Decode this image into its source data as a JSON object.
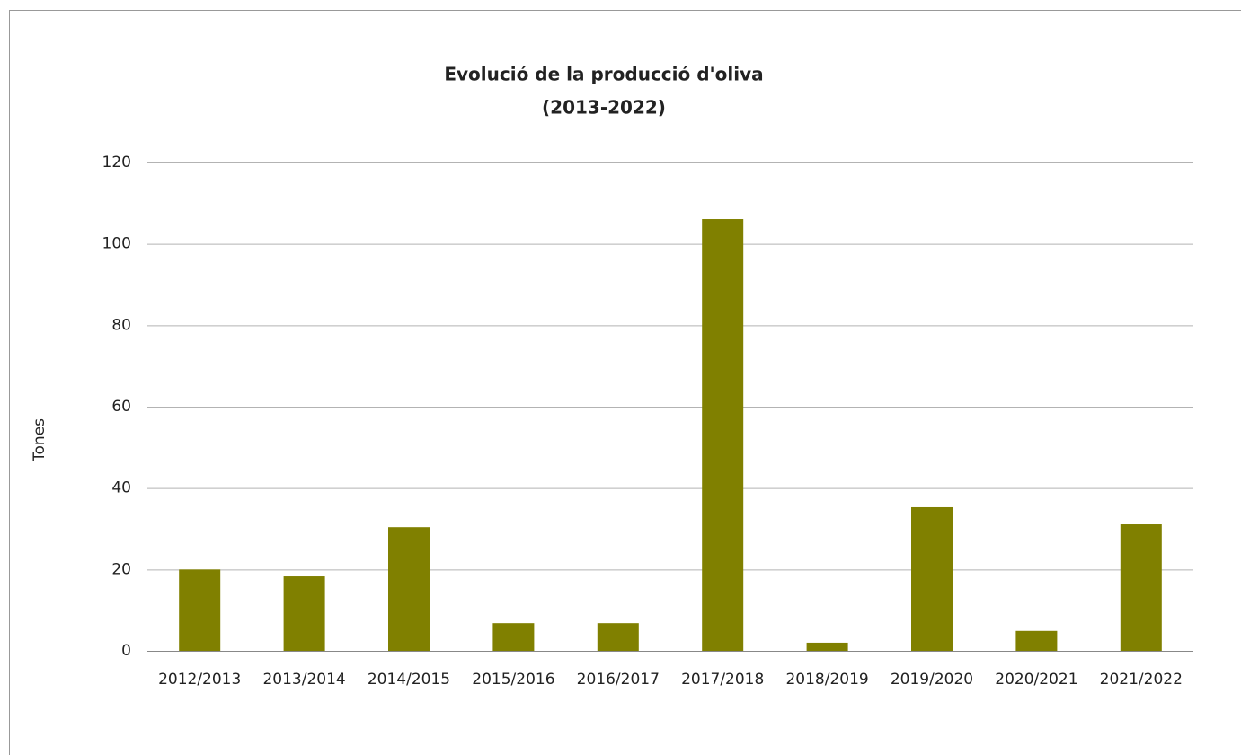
{
  "chart_data": {
    "type": "bar",
    "title": "Evolució de la producció d'oliva",
    "subtitle": "(2013-2022)",
    "y_label": "Tones",
    "categories": [
      "2012/2013",
      "2013/2014",
      "2014/2015",
      "2015/2016",
      "2016/2017",
      "2017/2018",
      "2018/2019",
      "2019/2020",
      "2020/2021",
      "2021/2022"
    ],
    "values": [
      20,
      18.3,
      30.4,
      6.8,
      6.8,
      106.1,
      2,
      35.3,
      4.9,
      31.1
    ],
    "color": "#808000",
    "ylim": [
      0,
      120
    ],
    "yticks": [
      0,
      20,
      40,
      60,
      80,
      100,
      120
    ],
    "grid": true
  }
}
